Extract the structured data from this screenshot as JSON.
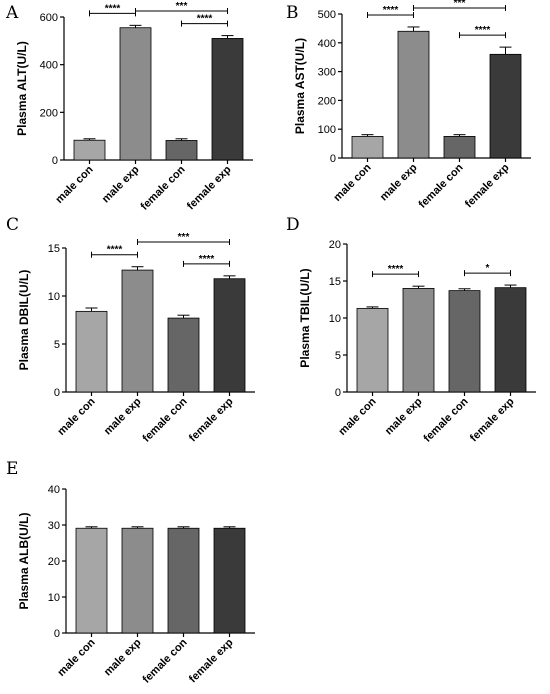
{
  "colors": [
    "#a6a6a6",
    "#8c8c8c",
    "#666666",
    "#3a3a3a"
  ],
  "chart_data": [
    {
      "panel": "A",
      "type": "bar",
      "ylabel": "Plasma ALT(U/L)",
      "categories": [
        "male con",
        "male exp",
        "female con",
        "female exp"
      ],
      "values": [
        83,
        555,
        82,
        510
      ],
      "errors": [
        6,
        10,
        7,
        12
      ],
      "ylim": [
        0,
        600
      ],
      "yticks": [
        0,
        200,
        400,
        600
      ],
      "significance": [
        {
          "from": 0,
          "to": 1,
          "label": "****"
        },
        {
          "from": 1,
          "to": 3,
          "label": "***"
        },
        {
          "from": 2,
          "to": 3,
          "label": "****"
        }
      ]
    },
    {
      "panel": "B",
      "type": "bar",
      "ylabel": "Plasma AST(U/L)",
      "categories": [
        "male con",
        "male exp",
        "female con",
        "female exp"
      ],
      "values": [
        75,
        440,
        75,
        360
      ],
      "errors": [
        6,
        15,
        6,
        25
      ],
      "ylim": [
        0,
        500
      ],
      "yticks": [
        0,
        100,
        200,
        300,
        400,
        500
      ],
      "significance": [
        {
          "from": 0,
          "to": 1,
          "label": "****"
        },
        {
          "from": 1,
          "to": 3,
          "label": "***"
        },
        {
          "from": 2,
          "to": 3,
          "label": "****"
        }
      ]
    },
    {
      "panel": "C",
      "type": "bar",
      "ylabel": "Plasma DBIL(U/L)",
      "categories": [
        "male con",
        "male exp",
        "female con",
        "female exp"
      ],
      "values": [
        8.4,
        12.7,
        7.7,
        11.8
      ],
      "errors": [
        0.35,
        0.35,
        0.3,
        0.3
      ],
      "ylim": [
        0,
        15
      ],
      "yticks": [
        0,
        5,
        10,
        15
      ],
      "significance": [
        {
          "from": 0,
          "to": 1,
          "label": "****"
        },
        {
          "from": 1,
          "to": 3,
          "label": "***"
        },
        {
          "from": 2,
          "to": 3,
          "label": "****"
        }
      ]
    },
    {
      "panel": "D",
      "type": "bar",
      "ylabel": "Plasma TBIL(U/L)",
      "categories": [
        "male con",
        "male exp",
        "female con",
        "female exp"
      ],
      "values": [
        11.3,
        14.0,
        13.7,
        14.1
      ],
      "errors": [
        0.2,
        0.3,
        0.25,
        0.35
      ],
      "ylim": [
        0,
        20
      ],
      "yticks": [
        0,
        5,
        10,
        15,
        20
      ],
      "significance": [
        {
          "from": 0,
          "to": 1,
          "label": "****"
        },
        {
          "from": 2,
          "to": 3,
          "label": "*"
        }
      ]
    },
    {
      "panel": "E",
      "type": "bar",
      "ylabel": "Plasma ALB(U/L)",
      "categories": [
        "male con",
        "male exp",
        "female con",
        "female exp"
      ],
      "values": [
        29.1,
        29.1,
        29.1,
        29.1
      ],
      "errors": [
        0.4,
        0.4,
        0.4,
        0.4
      ],
      "ylim": [
        0,
        40
      ],
      "yticks": [
        0,
        10,
        20,
        30,
        40
      ],
      "significance": []
    }
  ]
}
